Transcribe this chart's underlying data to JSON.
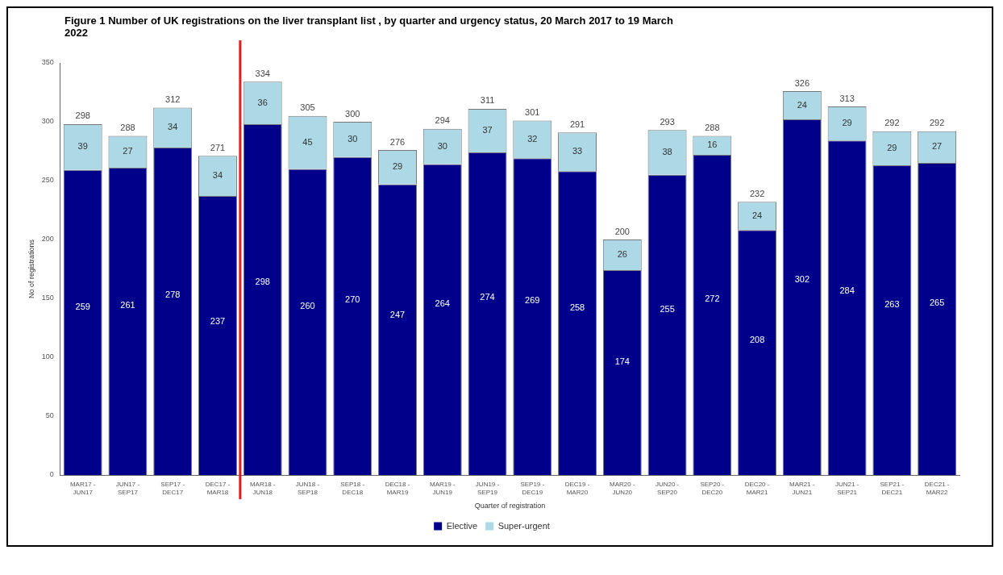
{
  "chart_data": {
    "type": "bar",
    "title": "Figure 1 Number of UK registrations on the liver transplant list , by quarter and urgency status, 20 March 2017 to 19 March 2022",
    "xlabel": "Quarter of registration",
    "ylabel": "No of registrations",
    "categories": [
      "MAR17 - JUN17",
      "JUN17 - SEP17",
      "SEP17 - DEC17",
      "DEC17 - MAR18",
      "MAR18 - JUN18",
      "JUN18 - SEP18",
      "SEP18 - DEC18",
      "DEC18 - MAR19",
      "MAR19 - JUN19",
      "JUN19 - SEP19",
      "SEP19 - DEC19",
      "DEC19 - MAR20",
      "MAR20 - JUN20",
      "JUN20 - SEP20",
      "SEP20 - DEC20",
      "DEC20 - MAR21",
      "MAR21 - JUN21",
      "JUN21 - SEP21",
      "SEP21 - DEC21",
      "DEC21 - MAR22"
    ],
    "series": [
      {
        "name": "Elective",
        "color": "#00008b",
        "values": [
          259,
          261,
          278,
          237,
          298,
          260,
          270,
          247,
          264,
          274,
          269,
          258,
          174,
          255,
          272,
          208,
          302,
          284,
          263,
          265
        ]
      },
      {
        "name": "Super-urgent",
        "color": "#add8e6",
        "values": [
          39,
          27,
          34,
          34,
          36,
          45,
          30,
          29,
          30,
          37,
          32,
          33,
          26,
          38,
          16,
          24,
          24,
          29,
          29,
          27
        ]
      }
    ],
    "stacked": true,
    "data_labels": true,
    "totals": [
      "298",
      "288",
      "312",
      "271",
      "334",
      "305",
      "300",
      "276",
      "294",
      "311",
      "301",
      "291",
      "200",
      "293",
      "288",
      "232",
      "326",
      "313",
      "292",
      "292"
    ],
    "ylim": [
      0,
      350
    ],
    "yticks": [
      0,
      50,
      100,
      150,
      200,
      250,
      300,
      350
    ],
    "grid": false,
    "legend": "bottom",
    "ref_lines": [
      {
        "axis": "x",
        "value": "MAR18 - JUN18",
        "color": "#e02020"
      }
    ]
  }
}
